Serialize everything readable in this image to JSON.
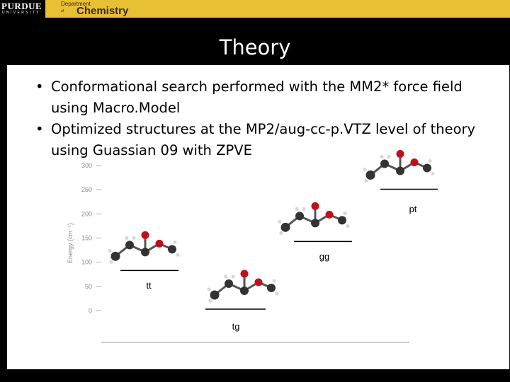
{
  "header": {
    "logo_left": "PURDUE",
    "logo_left_sub": "UNIVERSITY",
    "dept_line1": "Department",
    "dept_line2": "of",
    "dept_line3": "Chemistry"
  },
  "slide": {
    "title": "Theory",
    "bullets": [
      "Conformational search performed with the MM2* force field using Macro.Model",
      "Optimized structures at the MP2/aug-cc-p.VTZ level of theory using Guassian 09 with ZPVE"
    ]
  },
  "chart_data": {
    "type": "energy-level diagram",
    "ylabel": "Energy (cm⁻¹)",
    "ylim": [
      0,
      300
    ],
    "yticks": [
      "300",
      "250",
      "200",
      "150",
      "100",
      "50",
      "0"
    ],
    "levels": [
      {
        "name": "tt",
        "energy": 80
      },
      {
        "name": "tg",
        "energy": 0
      },
      {
        "name": "gg",
        "energy": 140
      },
      {
        "name": "pt",
        "energy": 248
      }
    ]
  },
  "colors": {
    "background": "#000000",
    "content": "#ffffff",
    "logo_gold": "#e8c034",
    "oxygen": "#c0101a",
    "carbon": "#333333",
    "hydrogen": "#d8d8d8"
  }
}
